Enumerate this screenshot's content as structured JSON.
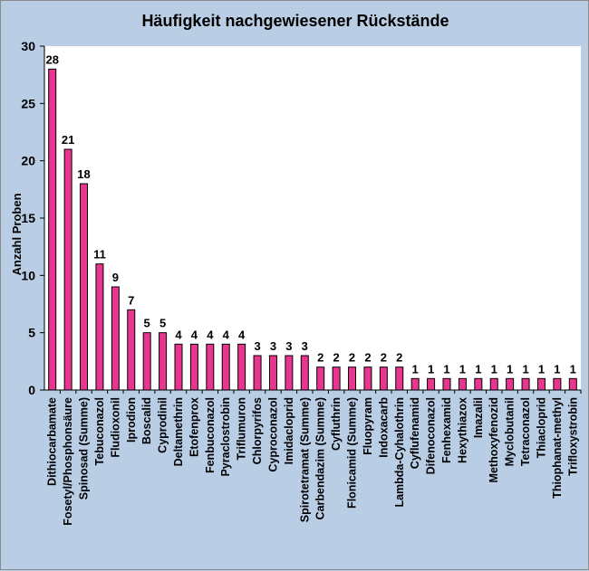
{
  "chart_data": {
    "type": "bar",
    "title": "Häufigkeit nachgewiesener Rückstände",
    "xlabel": "",
    "ylabel": "Anzahl Proben",
    "ylim": [
      0,
      30
    ],
    "yticks": [
      0,
      5,
      10,
      15,
      20,
      25,
      30
    ],
    "grid": false,
    "legend": false,
    "bar_color": "#e8358f",
    "categories": [
      "Dithiocarbamate",
      "Fosetyl/Phosphonsäure",
      "Spinosad (Summe)",
      "Tebuconazol",
      "Fludioxonil",
      "Iprodion",
      "Boscalid",
      "Cyprodinil",
      "Deltamethrin",
      "Etofenprox",
      "Fenbuconazol",
      "Pyraclostrobin",
      "Triflumuron",
      "Chlorpyrifos",
      "Cyproconazol",
      "Imidacloprid",
      "Spirotetramat (Summe)",
      "Carbendazim (Summe)",
      "Cyfluthrin",
      "Flonicamid (Summe)",
      "Fluopyram",
      "Indoxacarb",
      "Lambda-Cyhalothrin",
      "Cyflufenamid",
      "Difenoconazol",
      "Fenhexamid",
      "Hexythiazox",
      "Imazalil",
      "Methoxyfenozid",
      "Myclobutanil",
      "Tetraconazol",
      "Thiacloprid",
      "Thiophanat-methyl",
      "Trifloxystrobin"
    ],
    "values": [
      28,
      21,
      18,
      11,
      9,
      7,
      5,
      5,
      4,
      4,
      4,
      4,
      4,
      3,
      3,
      3,
      3,
      2,
      2,
      2,
      2,
      2,
      2,
      1,
      1,
      1,
      1,
      1,
      1,
      1,
      1,
      1,
      1,
      1
    ]
  }
}
